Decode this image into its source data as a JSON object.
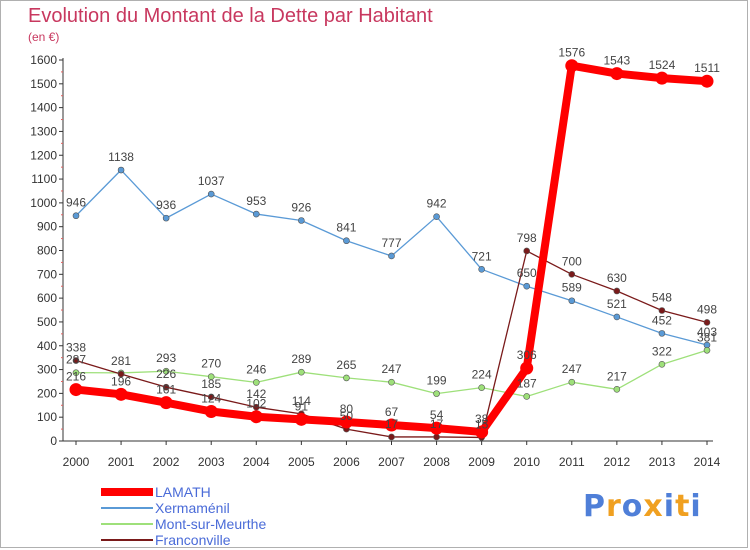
{
  "chart_data": {
    "type": "line",
    "title": "Evolution du Montant de la Dette par Habitant",
    "unit_label": "(en €)",
    "x": [
      "2000",
      "2001",
      "2002",
      "2003",
      "2004",
      "2005",
      "2006",
      "2007",
      "2008",
      "2009",
      "2010",
      "2011",
      "2012",
      "2013",
      "2014"
    ],
    "ylim": [
      0,
      1600
    ],
    "yticks": [
      0,
      100,
      200,
      300,
      400,
      500,
      600,
      700,
      800,
      900,
      1000,
      1100,
      1200,
      1300,
      1400,
      1500,
      1600
    ],
    "grid": false,
    "legend_position": "bottom-left",
    "series": [
      {
        "name": "LAMATH",
        "color": "#ff0000",
        "emphasis": true,
        "values": [
          216,
          196,
          161,
          124,
          102,
          91,
          80,
          67,
          54,
          38,
          306,
          1576,
          1543,
          1524,
          1511
        ],
        "labels": [
          "216",
          "196",
          "161",
          "124",
          "102",
          "91",
          "80",
          "67",
          "54",
          "38",
          "306",
          "1576",
          "1543",
          "1524",
          "1511"
        ]
      },
      {
        "name": "Xermaménil",
        "color": "#5a9ad6",
        "emphasis": false,
        "values": [
          946,
          1138,
          936,
          1037,
          953,
          926,
          841,
          777,
          942,
          721,
          650,
          589,
          521,
          452,
          403
        ],
        "labels": [
          "946",
          "1138",
          "936",
          "1037",
          "953",
          "926",
          "841",
          "777",
          "942",
          "721",
          "650",
          "589",
          "521",
          "452",
          "403"
        ]
      },
      {
        "name": "Mont-sur-Meurthe",
        "color": "#9ee07a",
        "emphasis": false,
        "values": [
          287,
          286,
          293,
          270,
          246,
          289,
          265,
          247,
          199,
          224,
          187,
          247,
          217,
          322,
          381
        ],
        "labels": [
          "287",
          "",
          "293",
          "270",
          "246",
          "289",
          "265",
          "247",
          "199",
          "224",
          "187",
          "247",
          "217",
          "322",
          "381"
        ]
      },
      {
        "name": "Franconville",
        "color": "#7a1a1a",
        "emphasis": false,
        "values": [
          338,
          281,
          226,
          185,
          142,
          114,
          50,
          17,
          17,
          15,
          798,
          700,
          630,
          548,
          498
        ],
        "labels": [
          "338",
          "281",
          "226",
          "185",
          "142",
          "114",
          "50",
          "17",
          "17",
          "15",
          "798",
          "700",
          "630",
          "548",
          "498"
        ]
      }
    ]
  },
  "brand": {
    "text": "Proxiti",
    "letter_colors": [
      "#4f7fd8",
      "#f0a020",
      "#4f7fd8",
      "#f0a020",
      "#4f7fd8",
      "#f0a020",
      "#4f7fd8"
    ]
  }
}
